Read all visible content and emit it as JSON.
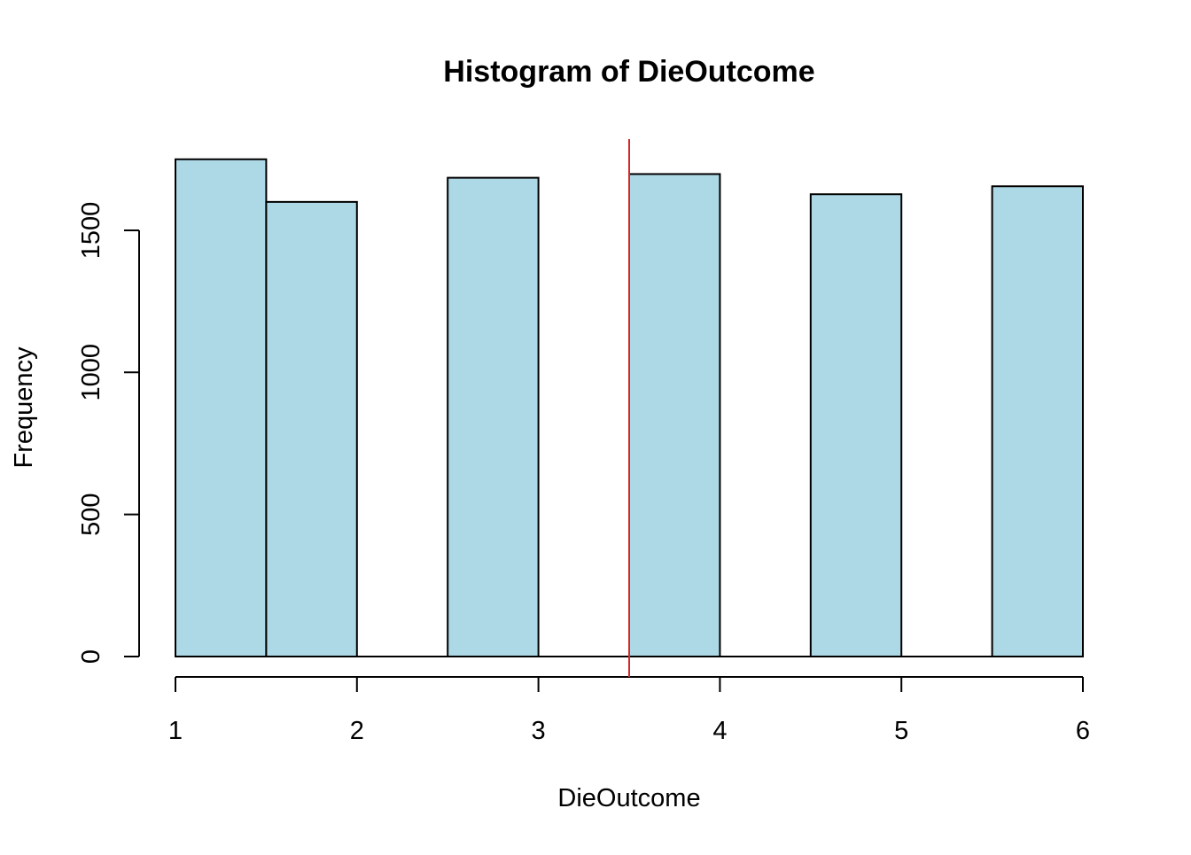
{
  "chart_data": {
    "type": "bar",
    "title": "Histogram of DieOutcome",
    "xlabel": "DieOutcome",
    "ylabel": "Frequency",
    "xlim": [
      1,
      6
    ],
    "ylim": [
      0,
      1800
    ],
    "x_ticks": [
      1,
      2,
      3,
      4,
      5,
      6
    ],
    "x_tick_labels": [
      "1",
      "2",
      "3",
      "4",
      "5",
      "6"
    ],
    "y_ticks": [
      0,
      500,
      1000,
      1500
    ],
    "y_tick_labels": [
      "0",
      "500",
      "1000",
      "1500"
    ],
    "bins": [
      {
        "start": 1.0,
        "end": 1.5,
        "count": 1750
      },
      {
        "start": 1.5,
        "end": 2.0,
        "count": 1600
      },
      {
        "start": 2.0,
        "end": 2.5,
        "count": 0
      },
      {
        "start": 2.5,
        "end": 3.0,
        "count": 1685
      },
      {
        "start": 3.0,
        "end": 3.5,
        "count": 0
      },
      {
        "start": 3.5,
        "end": 4.0,
        "count": 1698
      },
      {
        "start": 4.0,
        "end": 4.5,
        "count": 0
      },
      {
        "start": 4.5,
        "end": 5.0,
        "count": 1627
      },
      {
        "start": 5.0,
        "end": 5.5,
        "count": 0
      },
      {
        "start": 5.5,
        "end": 6.0,
        "count": 1655
      }
    ],
    "reference_line": {
      "x": 3.5,
      "color": "#d62728"
    },
    "bar_color": "#add8e6",
    "grid": false,
    "legend": "none"
  }
}
